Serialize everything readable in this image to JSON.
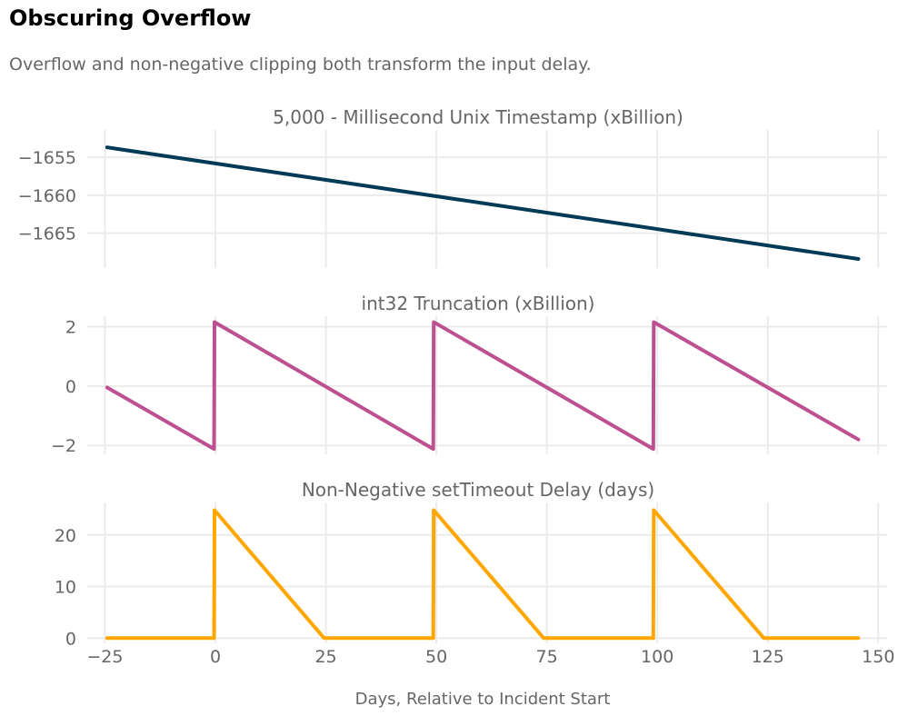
{
  "title": "Obscuring Overflow",
  "subtitle": "Overflow and non-negative clipping both transform the input delay.",
  "chart_data": {
    "type": "line",
    "xlabel": "Days, Relative to Incident Start",
    "xlim": [
      -29,
      152
    ],
    "xticks": [
      -25,
      0,
      25,
      50,
      75,
      100,
      125,
      150
    ],
    "xtick_labels": [
      "−25",
      "0",
      "25",
      "50",
      "75",
      "100",
      "125",
      "150"
    ],
    "grid": true,
    "panels": [
      {
        "title": "5,000 - Millisecond Unix Timestamp (xBillion)",
        "color": "#003a54",
        "ylim": [
          -1669.6,
          -1651.4
        ],
        "yticks": [
          -1655,
          -1660,
          -1665
        ],
        "ytick_labels": [
          "−1655",
          "−1660",
          "−1665"
        ],
        "x": [
          -24.5,
          145.5
        ],
        "y": [
          -1653.7,
          -1668.4
        ]
      },
      {
        "title": "int32 Truncation (xBillion)",
        "color": "#bd5090",
        "ylim": [
          -2.3,
          2.35
        ],
        "yticks": [
          2,
          0,
          -2
        ],
        "ytick_labels": [
          "2",
          "0",
          "−2"
        ],
        "x": [
          -24.5,
          -0.3,
          -0.2,
          49.3,
          49.4,
          99.1,
          99.2,
          145.5
        ],
        "y": [
          -0.05,
          -2.12,
          2.15,
          -2.12,
          2.15,
          -2.12,
          2.15,
          -1.8
        ]
      },
      {
        "title": "Non-Negative setTimeout Delay (days)",
        "color": "#ffa600",
        "ylim": [
          -1,
          26.3
        ],
        "yticks": [
          20,
          10,
          0
        ],
        "ytick_labels": [
          "20",
          "10",
          "0"
        ],
        "x": [
          -24.5,
          -0.3,
          -0.2,
          24.6,
          49.3,
          49.4,
          74.3,
          99.1,
          99.2,
          124.1,
          145.5
        ],
        "y": [
          0,
          0,
          24.8,
          0,
          0,
          24.8,
          0,
          0,
          24.8,
          0,
          0
        ]
      }
    ]
  }
}
